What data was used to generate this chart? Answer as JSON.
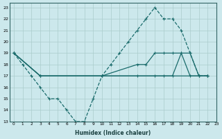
{
  "xlabel": "Humidex (Indice chaleur)",
  "bg_color": "#cce8ec",
  "grid_color": "#aacccc",
  "line_color": "#1a6b6b",
  "xlim": [
    -0.5,
    23
  ],
  "ylim": [
    13,
    23.4
  ],
  "xticks": [
    0,
    1,
    2,
    3,
    4,
    5,
    6,
    7,
    8,
    9,
    10,
    11,
    12,
    13,
    14,
    15,
    16,
    17,
    18,
    19,
    20,
    21,
    22,
    23
  ],
  "yticks": [
    13,
    14,
    15,
    16,
    17,
    18,
    19,
    20,
    21,
    22,
    23
  ],
  "series": [
    {
      "x": [
        0,
        1,
        2,
        3,
        4,
        5,
        6,
        7,
        8,
        9,
        10,
        11,
        12,
        13,
        14,
        15,
        16,
        17,
        18,
        19,
        20,
        21,
        22
      ],
      "y": [
        19,
        18,
        17,
        16,
        15,
        15,
        14,
        13,
        13,
        15,
        17,
        18,
        19,
        20,
        21,
        22,
        23,
        22,
        22,
        21,
        19,
        17,
        17
      ],
      "ls": "--",
      "marker": "+"
    },
    {
      "x": [
        0,
        3,
        10,
        14,
        15,
        16,
        17,
        18,
        19,
        20,
        21,
        22
      ],
      "y": [
        19,
        17,
        17,
        18,
        18,
        19,
        19,
        19,
        19,
        19,
        17,
        17
      ],
      "ls": "-",
      "marker": "+"
    },
    {
      "x": [
        0,
        3,
        22
      ],
      "y": [
        19,
        17,
        17
      ],
      "ls": "-",
      "marker": "+"
    },
    {
      "x": [
        0,
        3,
        10,
        14,
        16,
        17,
        18,
        19,
        20,
        21,
        22
      ],
      "y": [
        19,
        17,
        17,
        17,
        17,
        17,
        17,
        19,
        17,
        17,
        17
      ],
      "ls": "-",
      "marker": "+"
    }
  ]
}
